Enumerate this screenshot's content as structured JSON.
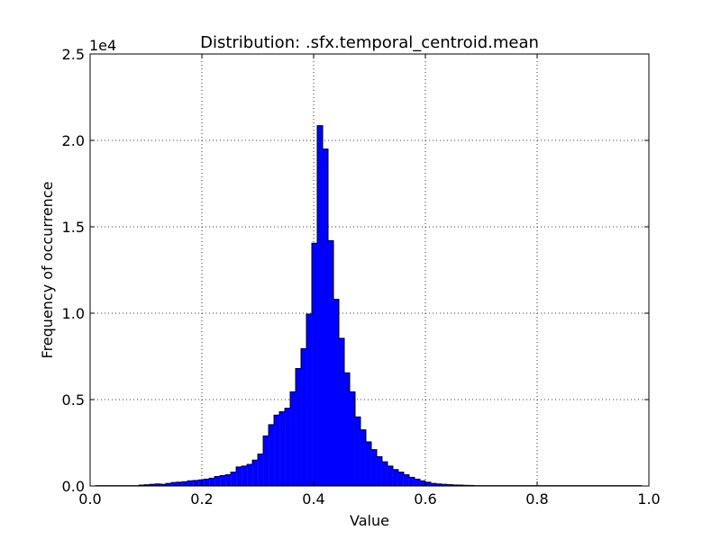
{
  "chart_data": {
    "type": "bar",
    "title": "Distribution: .sfx.temporal_centroid.mean",
    "xlabel": "Value",
    "ylabel": "Frequency of occurrence",
    "y_offset_label": "1e4",
    "xlim": [
      0.0,
      1.0
    ],
    "ylim": [
      0.0,
      2.5
    ],
    "grid": true,
    "x_ticks": [
      0.0,
      0.2,
      0.4,
      0.6,
      0.8,
      1.0
    ],
    "x_tick_labels": [
      "0.0",
      "0.2",
      "0.4",
      "0.6",
      "0.8",
      "1.0"
    ],
    "y_ticks": [
      0.0,
      0.5,
      1.0,
      1.5,
      2.0,
      2.5
    ],
    "y_tick_labels": [
      "0.0",
      "0.5",
      "1.0",
      "1.5",
      "2.0",
      "2.5"
    ],
    "bar_color": "#0000ff",
    "edge_color": "#000000",
    "bin_start": 0.01,
    "bin_width": 0.00967,
    "values": [
      0.002,
      0.002,
      0.002,
      0.002,
      0.002,
      0.002,
      0.002,
      0.002,
      0.005,
      0.007,
      0.01,
      0.012,
      0.01,
      0.015,
      0.02,
      0.022,
      0.025,
      0.03,
      0.032,
      0.035,
      0.04,
      0.045,
      0.055,
      0.06,
      0.065,
      0.08,
      0.11,
      0.115,
      0.125,
      0.15,
      0.185,
      0.29,
      0.355,
      0.41,
      0.43,
      0.45,
      0.545,
      0.68,
      0.795,
      0.995,
      1.405,
      2.085,
      1.95,
      1.42,
      1.08,
      0.855,
      0.655,
      0.545,
      0.4,
      0.325,
      0.255,
      0.21,
      0.17,
      0.14,
      0.115,
      0.095,
      0.08,
      0.065,
      0.05,
      0.04,
      0.03,
      0.022,
      0.015,
      0.012,
      0.01,
      0.008,
      0.006,
      0.005,
      0.004,
      0.003,
      0.002,
      0.002,
      0.002,
      0.002,
      0.002,
      0.002,
      0.002,
      0.002,
      0.002,
      0.002,
      0.002,
      0.002,
      0.002,
      0.002,
      0.002,
      0.002,
      0.002,
      0.002,
      0.002,
      0.002,
      0.002,
      0.002,
      0.002,
      0.002,
      0.002,
      0.002,
      0.002,
      0.002,
      0.002,
      0.002,
      0.002
    ]
  }
}
